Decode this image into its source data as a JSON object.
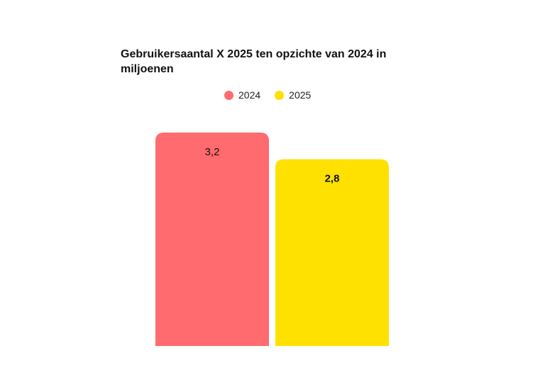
{
  "chart_data": {
    "type": "bar",
    "title": "Gebruikersaantal X 2025 ten opzichte van 2024 in miljoenen",
    "categories": [
      "2024",
      "2025"
    ],
    "values": [
      3.2,
      2.8
    ],
    "value_labels": [
      "3,2",
      "2,8"
    ],
    "colors": [
      "#ff6b6e",
      "#ffe100"
    ],
    "label_bold": [
      false,
      true
    ],
    "legend": [
      {
        "name": "2024",
        "color": "#ff6b6e"
      },
      {
        "name": "2025",
        "color": "#ffe100"
      }
    ],
    "legend_position": "top-center",
    "ylim": [
      0,
      3.2
    ],
    "grid": false,
    "xlabel": "",
    "ylabel": ""
  }
}
